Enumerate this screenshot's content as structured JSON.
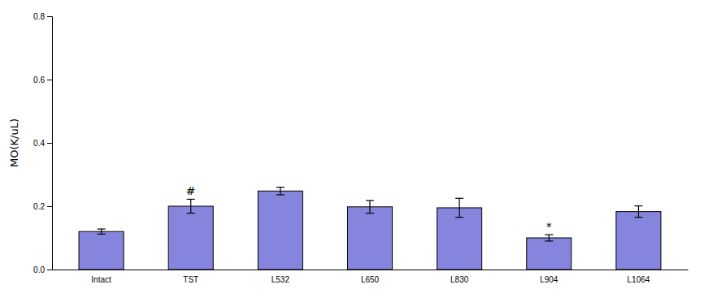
{
  "chart_data": {
    "type": "bar",
    "categories": [
      "Intact",
      "TST",
      "L532",
      "L650",
      "L830",
      "L904",
      "L1064"
    ],
    "values": [
      0.12,
      0.2,
      0.248,
      0.198,
      0.195,
      0.1,
      0.183
    ],
    "errors": [
      0.008,
      0.022,
      0.012,
      0.02,
      0.03,
      0.01,
      0.018
    ],
    "color": "#8585dd",
    "ylabel": "MO(K/uL)",
    "ylim": [
      0.0,
      0.8
    ],
    "yticks": [
      {
        "value": 0.0,
        "label": "0.0"
      },
      0.2,
      0.4,
      0.6,
      0.8
    ],
    "annotations": [
      {
        "category": "TST",
        "text": "#"
      },
      {
        "category": "L904",
        "text": "*"
      }
    ],
    "grid": false
  }
}
